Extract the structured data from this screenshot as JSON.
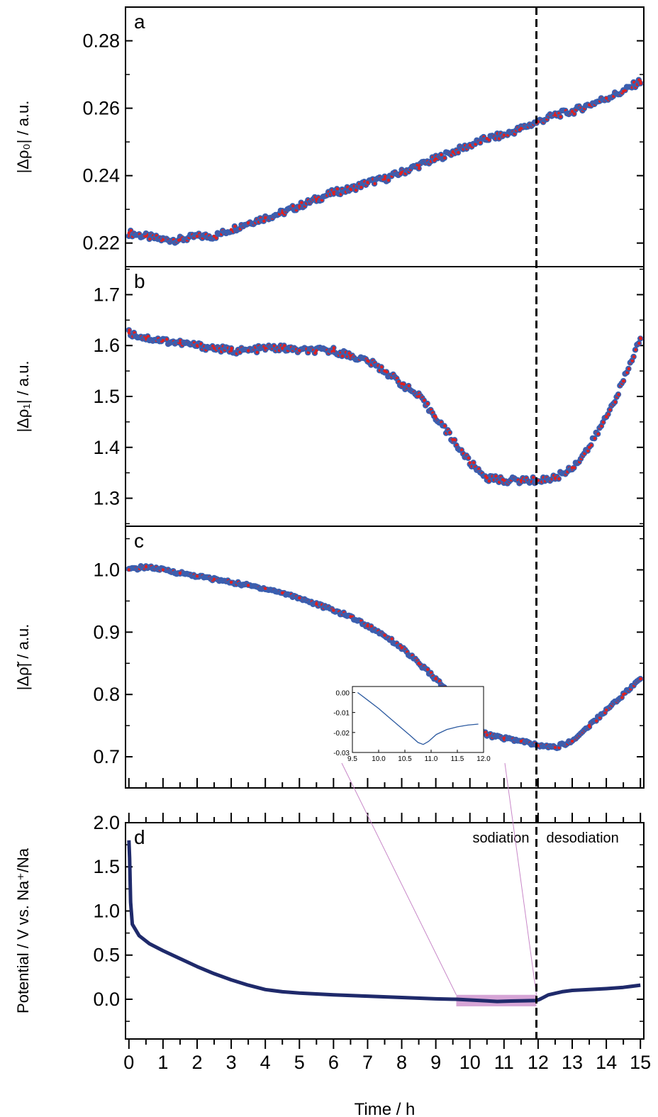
{
  "chart_data": [
    {
      "type": "scatter",
      "panel_label": "a",
      "ylabel": "|Δρ₀| / a.u.",
      "ylim": [
        0.213,
        0.29
      ],
      "yticks": [
        "0.22",
        "0.24",
        "0.26",
        "0.28"
      ],
      "xlim": [
        -0.1,
        15.1
      ],
      "marker_colors": {
        "outer": "#3a5fb0",
        "inner": "#e02020"
      },
      "points": [
        [
          0,
          0.223
        ],
        [
          0.5,
          0.222
        ],
        [
          1,
          0.221
        ],
        [
          1.5,
          0.221
        ],
        [
          2,
          0.222
        ],
        [
          2.5,
          0.222
        ],
        [
          3,
          0.224
        ],
        [
          3.5,
          0.226
        ],
        [
          4,
          0.2275
        ],
        [
          4.5,
          0.229
        ],
        [
          5,
          0.231
        ],
        [
          5.5,
          0.233
        ],
        [
          6,
          0.235
        ],
        [
          6.5,
          0.236
        ],
        [
          7,
          0.238
        ],
        [
          7.5,
          0.239
        ],
        [
          8,
          0.241
        ],
        [
          8.5,
          0.243
        ],
        [
          9,
          0.245
        ],
        [
          9.5,
          0.247
        ],
        [
          10,
          0.249
        ],
        [
          10.5,
          0.251
        ],
        [
          11,
          0.252
        ],
        [
          11.5,
          0.254
        ],
        [
          12,
          0.256
        ],
        [
          12.5,
          0.258
        ],
        [
          13,
          0.259
        ],
        [
          13.5,
          0.261
        ],
        [
          14,
          0.263
        ],
        [
          14.5,
          0.265
        ],
        [
          15,
          0.268
        ]
      ]
    },
    {
      "type": "scatter",
      "panel_label": "b",
      "ylabel": "|Δρ₁| / a.u.",
      "ylim": [
        1.245,
        1.755
      ],
      "yticks": [
        "1.3",
        "1.4",
        "1.5",
        "1.6",
        "1.7"
      ],
      "xlim": [
        -0.1,
        15.1
      ],
      "marker_colors": {
        "outer": "#3a5fb0",
        "inner": "#e02020"
      },
      "points": [
        [
          0,
          1.625
        ],
        [
          0.5,
          1.615
        ],
        [
          1,
          1.61
        ],
        [
          1.5,
          1.605
        ],
        [
          2,
          1.6
        ],
        [
          2.5,
          1.595
        ],
        [
          3,
          1.59
        ],
        [
          3.5,
          1.59
        ],
        [
          4,
          1.595
        ],
        [
          4.5,
          1.595
        ],
        [
          5,
          1.59
        ],
        [
          5.5,
          1.59
        ],
        [
          6,
          1.59
        ],
        [
          6.5,
          1.58
        ],
        [
          7,
          1.57
        ],
        [
          7.5,
          1.55
        ],
        [
          8,
          1.525
        ],
        [
          8.5,
          1.5
        ],
        [
          9,
          1.46
        ],
        [
          9.5,
          1.415
        ],
        [
          10,
          1.37
        ],
        [
          10.5,
          1.34
        ],
        [
          11,
          1.335
        ],
        [
          11.5,
          1.335
        ],
        [
          12,
          1.335
        ],
        [
          12.5,
          1.34
        ],
        [
          13,
          1.36
        ],
        [
          13.5,
          1.4
        ],
        [
          14,
          1.46
        ],
        [
          14.5,
          1.53
        ],
        [
          15,
          1.615
        ]
      ]
    },
    {
      "type": "scatter",
      "panel_label": "c",
      "ylabel": "|Δρ̃| / a.u.",
      "ylim": [
        0.65,
        1.07
      ],
      "yticks": [
        "0.7",
        "0.8",
        "0.9",
        "1.0"
      ],
      "xlim": [
        -0.1,
        15.1
      ],
      "marker_colors": {
        "outer": "#3a5fb0",
        "inner": "#e02020"
      },
      "points": [
        [
          0,
          1.0
        ],
        [
          0.5,
          1.005
        ],
        [
          1,
          1.0
        ],
        [
          1.5,
          0.995
        ],
        [
          2,
          0.99
        ],
        [
          2.5,
          0.985
        ],
        [
          3,
          0.98
        ],
        [
          3.5,
          0.975
        ],
        [
          4,
          0.97
        ],
        [
          4.5,
          0.963
        ],
        [
          5,
          0.955
        ],
        [
          5.5,
          0.945
        ],
        [
          6,
          0.935
        ],
        [
          6.5,
          0.925
        ],
        [
          7,
          0.91
        ],
        [
          7.5,
          0.895
        ],
        [
          8,
          0.875
        ],
        [
          8.5,
          0.85
        ],
        [
          9,
          0.825
        ],
        [
          9.5,
          0.795
        ],
        [
          10,
          0.76
        ],
        [
          10.5,
          0.735
        ],
        [
          11,
          0.73
        ],
        [
          11.5,
          0.725
        ],
        [
          12,
          0.718
        ],
        [
          12.5,
          0.715
        ],
        [
          13,
          0.725
        ],
        [
          13.5,
          0.75
        ],
        [
          14,
          0.775
        ],
        [
          14.5,
          0.8
        ],
        [
          15,
          0.825
        ]
      ]
    },
    {
      "type": "line",
      "panel_label": "d",
      "ylabel": "Potential / V vs. Na⁺/Na",
      "xlabel": "Time / h",
      "ylim": [
        -0.45,
        2.0
      ],
      "yticks": [
        "0.0",
        "0.5",
        "1.0",
        "1.5",
        "2.0"
      ],
      "xlim": [
        -0.1,
        15.1
      ],
      "xticks": [
        "0",
        "1",
        "2",
        "3",
        "4",
        "5",
        "6",
        "7",
        "8",
        "9",
        "10",
        "11",
        "12",
        "13",
        "14",
        "15"
      ],
      "line_color": "#1f2a6b",
      "points": [
        [
          0,
          1.8
        ],
        [
          0.02,
          1.6
        ],
        [
          0.05,
          1.1
        ],
        [
          0.1,
          0.85
        ],
        [
          0.3,
          0.72
        ],
        [
          0.6,
          0.63
        ],
        [
          1,
          0.55
        ],
        [
          1.5,
          0.46
        ],
        [
          2,
          0.37
        ],
        [
          2.5,
          0.29
        ],
        [
          3,
          0.22
        ],
        [
          3.5,
          0.16
        ],
        [
          4,
          0.11
        ],
        [
          4.5,
          0.085
        ],
        [
          5,
          0.07
        ],
        [
          6,
          0.05
        ],
        [
          7,
          0.035
        ],
        [
          8,
          0.02
        ],
        [
          9,
          0.005
        ],
        [
          9.6,
          0.0
        ],
        [
          10,
          -0.008
        ],
        [
          10.5,
          -0.018
        ],
        [
          10.8,
          -0.025
        ],
        [
          11.2,
          -0.02
        ],
        [
          11.6,
          -0.017
        ],
        [
          11.95,
          -0.015
        ],
        [
          12.05,
          0.0
        ],
        [
          12.3,
          0.05
        ],
        [
          12.7,
          0.085
        ],
        [
          13,
          0.1
        ],
        [
          13.5,
          0.11
        ],
        [
          14,
          0.12
        ],
        [
          14.5,
          0.135
        ],
        [
          15,
          0.16
        ]
      ],
      "regions": {
        "left": "sodiation",
        "right": "desodiation"
      },
      "divider_x": 11.95,
      "highlight": {
        "x": [
          9.6,
          11.95
        ],
        "y": [
          -0.08,
          0.05
        ],
        "color": "#c887c8"
      },
      "inset": {
        "xlim": [
          9.5,
          12.0
        ],
        "ylim": [
          -0.03,
          0.003
        ],
        "xticks": [
          "9.5",
          "10.0",
          "10.5",
          "11.0",
          "11.5",
          "12.0"
        ],
        "yticks": [
          "0.00",
          "-0.01",
          "-0.02",
          "-0.03"
        ],
        "line_color": "#2c5aa0",
        "points": [
          [
            9.6,
            0.0
          ],
          [
            9.8,
            -0.004
          ],
          [
            10.0,
            -0.008
          ],
          [
            10.2,
            -0.0125
          ],
          [
            10.4,
            -0.017
          ],
          [
            10.6,
            -0.0215
          ],
          [
            10.75,
            -0.025
          ],
          [
            10.85,
            -0.026
          ],
          [
            10.95,
            -0.0245
          ],
          [
            11.1,
            -0.021
          ],
          [
            11.3,
            -0.0185
          ],
          [
            11.5,
            -0.0172
          ],
          [
            11.7,
            -0.0163
          ],
          [
            11.9,
            -0.0158
          ]
        ]
      }
    }
  ]
}
